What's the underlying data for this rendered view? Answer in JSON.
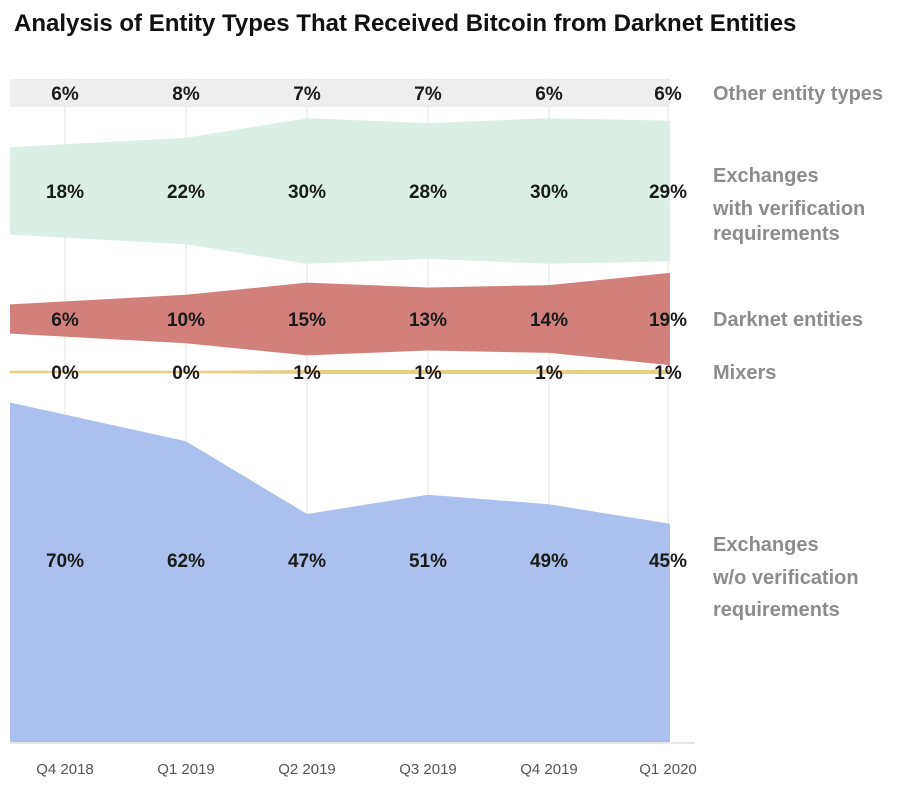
{
  "chart_data": {
    "type": "area",
    "title": "Analysis of Entity Types That Received Bitcoin from Darknet Entities",
    "xlabel": "",
    "ylabel": "",
    "categories": [
      "Q4 2018",
      "Q1 2019",
      "Q2 2019",
      "Q3 2019",
      "Q4 2019",
      "Q1 2020"
    ],
    "series": [
      {
        "name": "Other entity types",
        "values": [
          6,
          8,
          7,
          7,
          6,
          6
        ],
        "labels": [
          "6%",
          "8%",
          "7%",
          "7%",
          "6%",
          "6%"
        ],
        "color": "#eeeeee"
      },
      {
        "name": "Exchanges with verification requirements",
        "values": [
          18,
          22,
          30,
          28,
          30,
          29
        ],
        "labels": [
          "18%",
          "22%",
          "30%",
          "28%",
          "30%",
          "29%"
        ],
        "color": "#dcefe7"
      },
      {
        "name": "Darknet entities",
        "values": [
          6,
          10,
          15,
          13,
          14,
          19
        ],
        "labels": [
          "6%",
          "10%",
          "15%",
          "13%",
          "14%",
          "19%"
        ],
        "color": "#d2807a"
      },
      {
        "name": "Mixers",
        "values": [
          0,
          0,
          1,
          1,
          1,
          1
        ],
        "labels": [
          "0%",
          "0%",
          "1%",
          "1%",
          "1%",
          "1%"
        ],
        "color": "#e8cf84"
      },
      {
        "name": "Exchanges w/o verification requirements",
        "values": [
          70,
          62,
          47,
          51,
          49,
          45
        ],
        "labels": [
          "70%",
          "62%",
          "47%",
          "51%",
          "49%",
          "45%"
        ],
        "color": "#a9c1ec"
      }
    ],
    "legend_lines": [
      [
        "Other entity types"
      ],
      [
        "Exchanges",
        "with verification",
        "requirements"
      ],
      [
        "Darknet entities"
      ],
      [
        "Mixers"
      ],
      [
        "Exchanges",
        "w/o verification",
        "requirements"
      ]
    ],
    "legend_position": "right",
    "grid": "vertical"
  }
}
